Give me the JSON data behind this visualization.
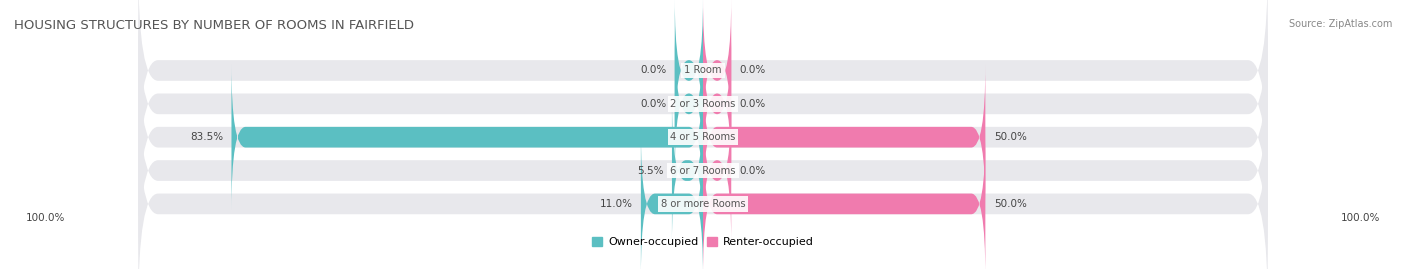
{
  "title": "HOUSING STRUCTURES BY NUMBER OF ROOMS IN FAIRFIELD",
  "source": "Source: ZipAtlas.com",
  "categories": [
    "1 Room",
    "2 or 3 Rooms",
    "4 or 5 Rooms",
    "6 or 7 Rooms",
    "8 or more Rooms"
  ],
  "owner_values": [
    0.0,
    0.0,
    83.5,
    5.5,
    11.0
  ],
  "renter_values": [
    0.0,
    0.0,
    50.0,
    0.0,
    50.0
  ],
  "owner_color": "#5bbfc2",
  "renter_color": "#f07bae",
  "bar_bg_color": "#e8e8ec",
  "bar_height": 0.62,
  "max_value": 100.0,
  "figsize": [
    14.06,
    2.69
  ],
  "dpi": 100,
  "title_fontsize": 9.5,
  "label_fontsize": 7.5,
  "category_fontsize": 7.2,
  "legend_fontsize": 8,
  "source_fontsize": 7,
  "zero_bar_size": 5.0,
  "legend_owner": "Owner-occupied",
  "legend_renter": "Renter-occupied"
}
